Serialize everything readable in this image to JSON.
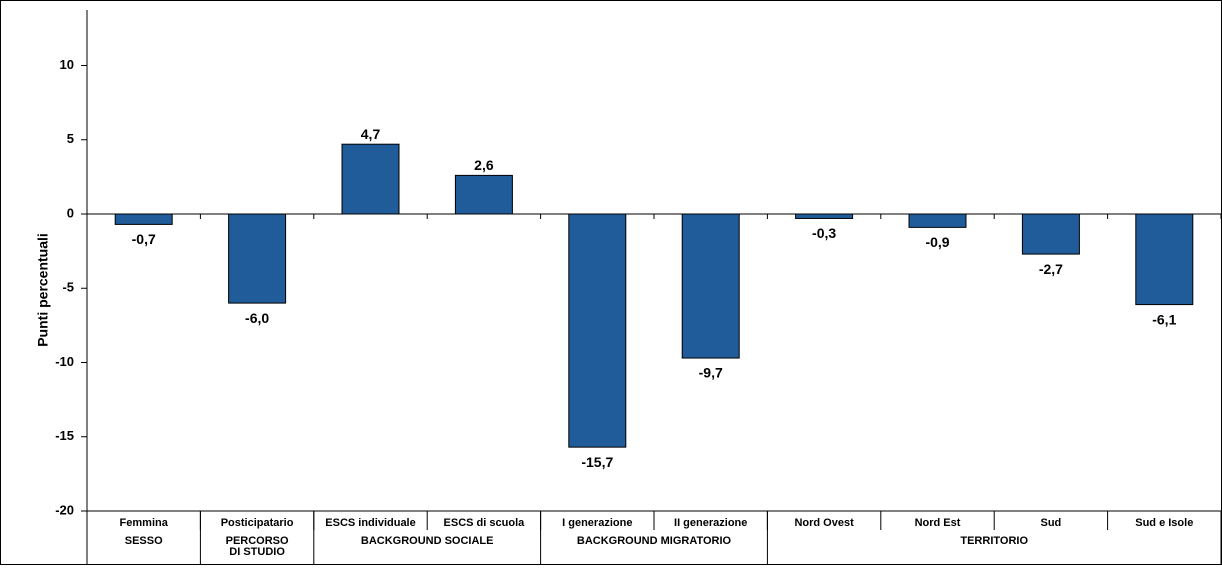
{
  "chart_data": {
    "type": "bar",
    "ylabel": "Punti percentuali",
    "ylim": [
      -20,
      12
    ],
    "yticks": [
      "10",
      "5",
      "0",
      "-5",
      "-10",
      "-15",
      "-20"
    ],
    "ytick_values": [
      10,
      5,
      0,
      -5,
      -10,
      -15,
      -20
    ],
    "categories": [
      "Femmina",
      "Posticipatario",
      "ESCS individuale",
      "ESCS  di scuola",
      "I generazione",
      "II generazione",
      "Nord Ovest",
      "Nord Est",
      "Sud",
      "Sud e Isole"
    ],
    "values": [
      -0.7,
      -6.0,
      4.7,
      2.6,
      -15.7,
      -9.7,
      -0.3,
      -0.9,
      -2.7,
      -6.1
    ],
    "value_labels": [
      "-0,7",
      "-6,0",
      "4,7",
      "2,6",
      "-15,7",
      "-9,7",
      "-0,3",
      "-0,9",
      "-2,7",
      "-6,1"
    ],
    "groups": [
      {
        "label": "SESSO",
        "start": 0,
        "end": 0
      },
      {
        "label": "PERCORSO DI STUDIO",
        "start": 1,
        "end": 1
      },
      {
        "label": "BACKGROUND SOCIALE",
        "start": 2,
        "end": 3
      },
      {
        "label": "BACKGROUND MIGRATORIO",
        "start": 4,
        "end": 5
      },
      {
        "label": "TERRITORIO",
        "start": 6,
        "end": 9
      }
    ],
    "grid": false,
    "legend": "none",
    "bar_color": "#1F5C99",
    "bar_border_color": "#000000"
  }
}
